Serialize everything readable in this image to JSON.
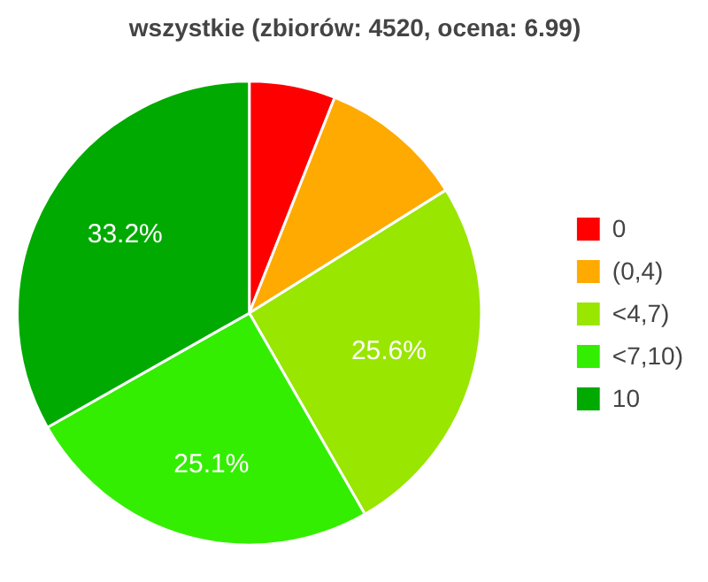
{
  "chart_data": {
    "type": "pie",
    "title": "wszystkie (zbiorów: 4520, ocena: 6.99)",
    "categories": [
      "0",
      "(0,4)",
      "<4,7)",
      "<7,10)",
      "10"
    ],
    "values": [
      6.0,
      10.1,
      25.6,
      25.1,
      33.2
    ],
    "colors": [
      "#ff0000",
      "#ffaa00",
      "#99e600",
      "#33ee00",
      "#00aa00"
    ],
    "value_labels": [
      null,
      null,
      "25.6%",
      "25.1%",
      "33.2%"
    ],
    "legend": "right"
  }
}
